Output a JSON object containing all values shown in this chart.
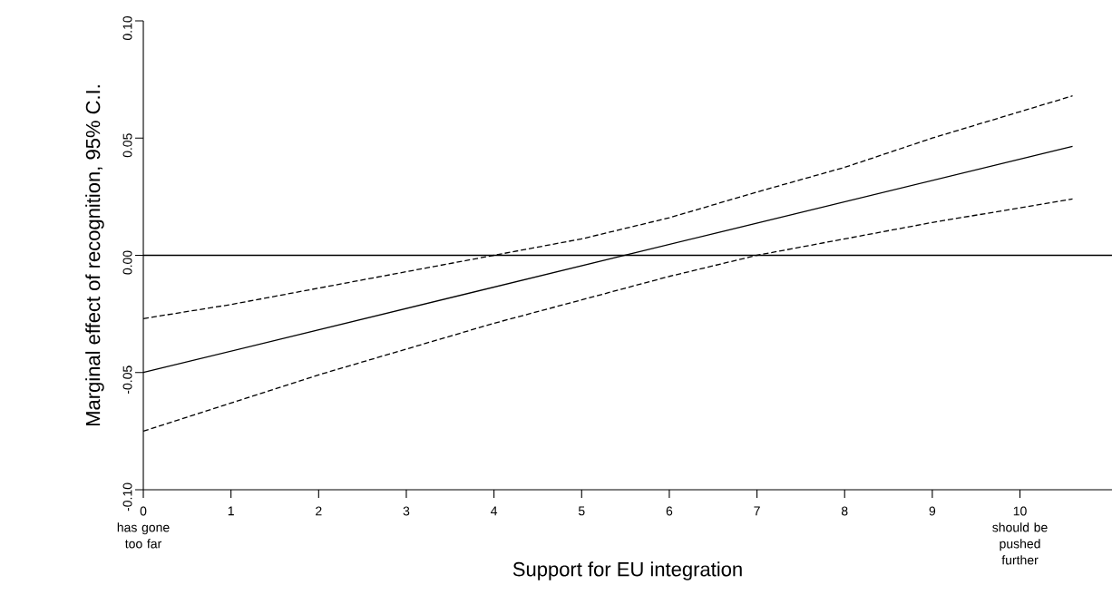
{
  "chart_data": {
    "type": "line",
    "xlabel": "Support for EU integration",
    "ylabel": "Marginal effect of recognition, 95% C.I.",
    "xlim": [
      0,
      11.05
    ],
    "ylim": [
      -0.1,
      0.1
    ],
    "xticks": [
      0,
      1,
      2,
      3,
      4,
      5,
      6,
      7,
      8,
      9,
      10
    ],
    "yticks": [
      {
        "value": -0.1,
        "label": "-0.10"
      },
      {
        "value": -0.05,
        "label": "-0.05"
      },
      {
        "value": 0,
        "label": "0.00"
      },
      {
        "value": 0.05,
        "label": "0.05"
      },
      {
        "value": 0.1,
        "label": "0.10"
      }
    ],
    "series": [
      {
        "color": "#000000",
        "line_style": "solid",
        "x": [
          0,
          10.6
        ],
        "values": [
          -0.05,
          0.0465
        ]
      },
      {
        "color": "#000000",
        "line_style": "dashed",
        "x": [
          0,
          1,
          2,
          3,
          4,
          5,
          6,
          7,
          8,
          9,
          10.6
        ],
        "values": [
          -0.027,
          -0.021,
          -0.014,
          -0.007,
          0.0,
          0.007,
          0.016,
          0.027,
          0.0375,
          0.05,
          0.068
        ]
      },
      {
        "color": "#000000",
        "line_style": "dashed",
        "x": [
          0,
          1,
          2,
          3,
          4,
          5,
          6,
          7,
          8,
          9,
          10.6
        ],
        "values": [
          -0.075,
          -0.063,
          -0.051,
          -0.04,
          -0.029,
          -0.019,
          -0.009,
          0.0,
          0.007,
          0.014,
          0.024
        ]
      }
    ],
    "ref_lines": [
      {
        "axis": "y",
        "value": 0,
        "color": "#000000"
      }
    ],
    "annotations": [
      "has gone too far",
      "should be pushed further"
    ]
  }
}
